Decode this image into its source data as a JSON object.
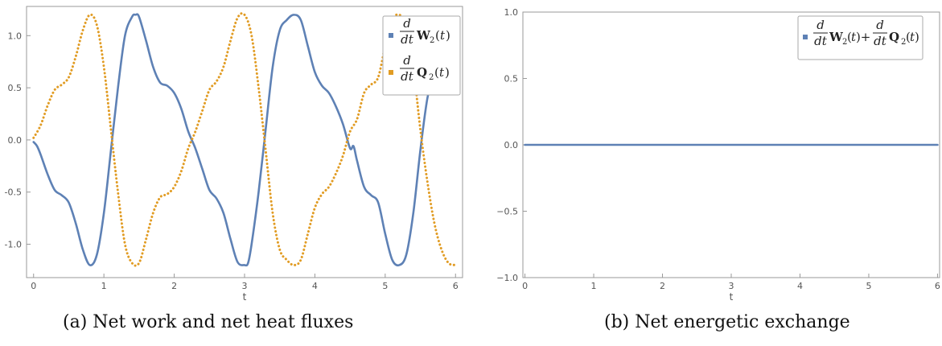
{
  "chart_data": [
    {
      "type": "line",
      "caption": "(a) Net work and net heat fluxes",
      "xlabel": "t",
      "xlim": [
        -0.1,
        6.1
      ],
      "ylim": [
        -1.32,
        1.28
      ],
      "xticks": [
        0,
        1,
        2,
        3,
        4,
        5,
        6
      ],
      "yticks": [
        -1.0,
        -0.5,
        0.0,
        0.5,
        1.0
      ],
      "yticklabels": [
        "-1.0",
        "-0.5",
        "0.0",
        "0.5",
        "1.0"
      ],
      "grid": false,
      "legend": "top-right",
      "series": [
        {
          "name": "d/dt W2(t)",
          "style": "solid",
          "color": "#5e81b5",
          "x": [
            0,
            0.05,
            0.1,
            0.2,
            0.3,
            0.4,
            0.5,
            0.6,
            0.7,
            0.8,
            0.9,
            1.0,
            1.1,
            1.2,
            1.3,
            1.4,
            1.45,
            1.5,
            1.6,
            1.7,
            1.8,
            1.9,
            2.0,
            2.1,
            2.2,
            2.3,
            2.4,
            2.5,
            2.6,
            2.7,
            2.8,
            2.9,
            3.0,
            3.05,
            3.1,
            3.2,
            3.3,
            3.4,
            3.5,
            3.6,
            3.7,
            3.8,
            3.9,
            4.0,
            4.1,
            4.2,
            4.3,
            4.4,
            4.5,
            4.55,
            4.6,
            4.7,
            4.8,
            4.9,
            5.0,
            5.1,
            5.2,
            5.3,
            5.4,
            5.5,
            5.6,
            5.7
          ],
          "y": [
            -0.02,
            -0.06,
            -0.14,
            -0.33,
            -0.48,
            -0.53,
            -0.6,
            -0.8,
            -1.05,
            -1.2,
            -1.1,
            -0.7,
            -0.1,
            0.5,
            1.0,
            1.18,
            1.2,
            1.18,
            0.95,
            0.7,
            0.55,
            0.52,
            0.45,
            0.3,
            0.08,
            -0.08,
            -0.28,
            -0.48,
            -0.56,
            -0.7,
            -0.95,
            -1.17,
            -1.2,
            -1.18,
            -1.0,
            -0.5,
            0.1,
            0.7,
            1.05,
            1.15,
            1.2,
            1.15,
            0.9,
            0.65,
            0.52,
            0.45,
            0.32,
            0.15,
            -0.08,
            -0.06,
            -0.2,
            -0.45,
            -0.53,
            -0.6,
            -0.9,
            -1.15,
            -1.2,
            -1.1,
            -0.7,
            -0.1,
            0.4,
            0.65
          ]
        },
        {
          "name": "d/dt Q2(t)",
          "style": "dotted",
          "color": "#e19c24",
          "x": [
            0,
            0.1,
            0.2,
            0.3,
            0.4,
            0.5,
            0.6,
            0.7,
            0.8,
            0.9,
            1.0,
            1.1,
            1.2,
            1.3,
            1.4,
            1.5,
            1.6,
            1.7,
            1.8,
            1.9,
            2.0,
            2.1,
            2.2,
            2.3,
            2.4,
            2.5,
            2.6,
            2.7,
            2.8,
            2.9,
            3.0,
            3.1,
            3.2,
            3.3,
            3.4,
            3.5,
            3.6,
            3.7,
            3.8,
            3.9,
            4.0,
            4.1,
            4.2,
            4.3,
            4.4,
            4.5,
            4.6,
            4.7,
            4.8,
            4.9,
            5.0,
            5.1,
            5.2,
            5.3,
            5.4,
            5.5,
            5.6,
            5.7,
            5.8,
            5.9,
            6.0
          ],
          "y": [
            0.02,
            0.14,
            0.33,
            0.48,
            0.53,
            0.6,
            0.8,
            1.05,
            1.2,
            1.1,
            0.7,
            0.1,
            -0.5,
            -1.0,
            -1.18,
            -1.18,
            -0.95,
            -0.7,
            -0.55,
            -0.52,
            -0.45,
            -0.3,
            -0.08,
            0.08,
            0.28,
            0.48,
            0.56,
            0.7,
            0.95,
            1.17,
            1.2,
            1.0,
            0.5,
            -0.1,
            -0.7,
            -1.05,
            -1.15,
            -1.2,
            -1.15,
            -0.9,
            -0.65,
            -0.52,
            -0.45,
            -0.32,
            -0.15,
            0.08,
            0.2,
            0.45,
            0.53,
            0.6,
            0.9,
            1.15,
            1.2,
            1.1,
            0.7,
            0.1,
            -0.4,
            -0.8,
            -1.05,
            -1.18,
            -1.2
          ]
        }
      ]
    },
    {
      "type": "line",
      "caption": "(b) Net energetic exchange",
      "xlabel": "t",
      "xlim": [
        -0.03,
        6.03
      ],
      "ylim": [
        -1.0,
        1.0
      ],
      "xticks": [
        0,
        1,
        2,
        3,
        4,
        5,
        6
      ],
      "yticks": [
        -1.0,
        -0.5,
        0.0,
        0.5,
        1.0
      ],
      "yticklabels": [
        "−1.0",
        "−0.5",
        "0.0",
        "0.5",
        "1.0"
      ],
      "grid": false,
      "legend": "top-right",
      "series": [
        {
          "name": "d/dt W2(t) + d/dt Q2(t)",
          "style": "solid",
          "color": "#5e81b5",
          "x": [
            0,
            6
          ],
          "y": [
            0,
            0
          ]
        }
      ]
    }
  ]
}
